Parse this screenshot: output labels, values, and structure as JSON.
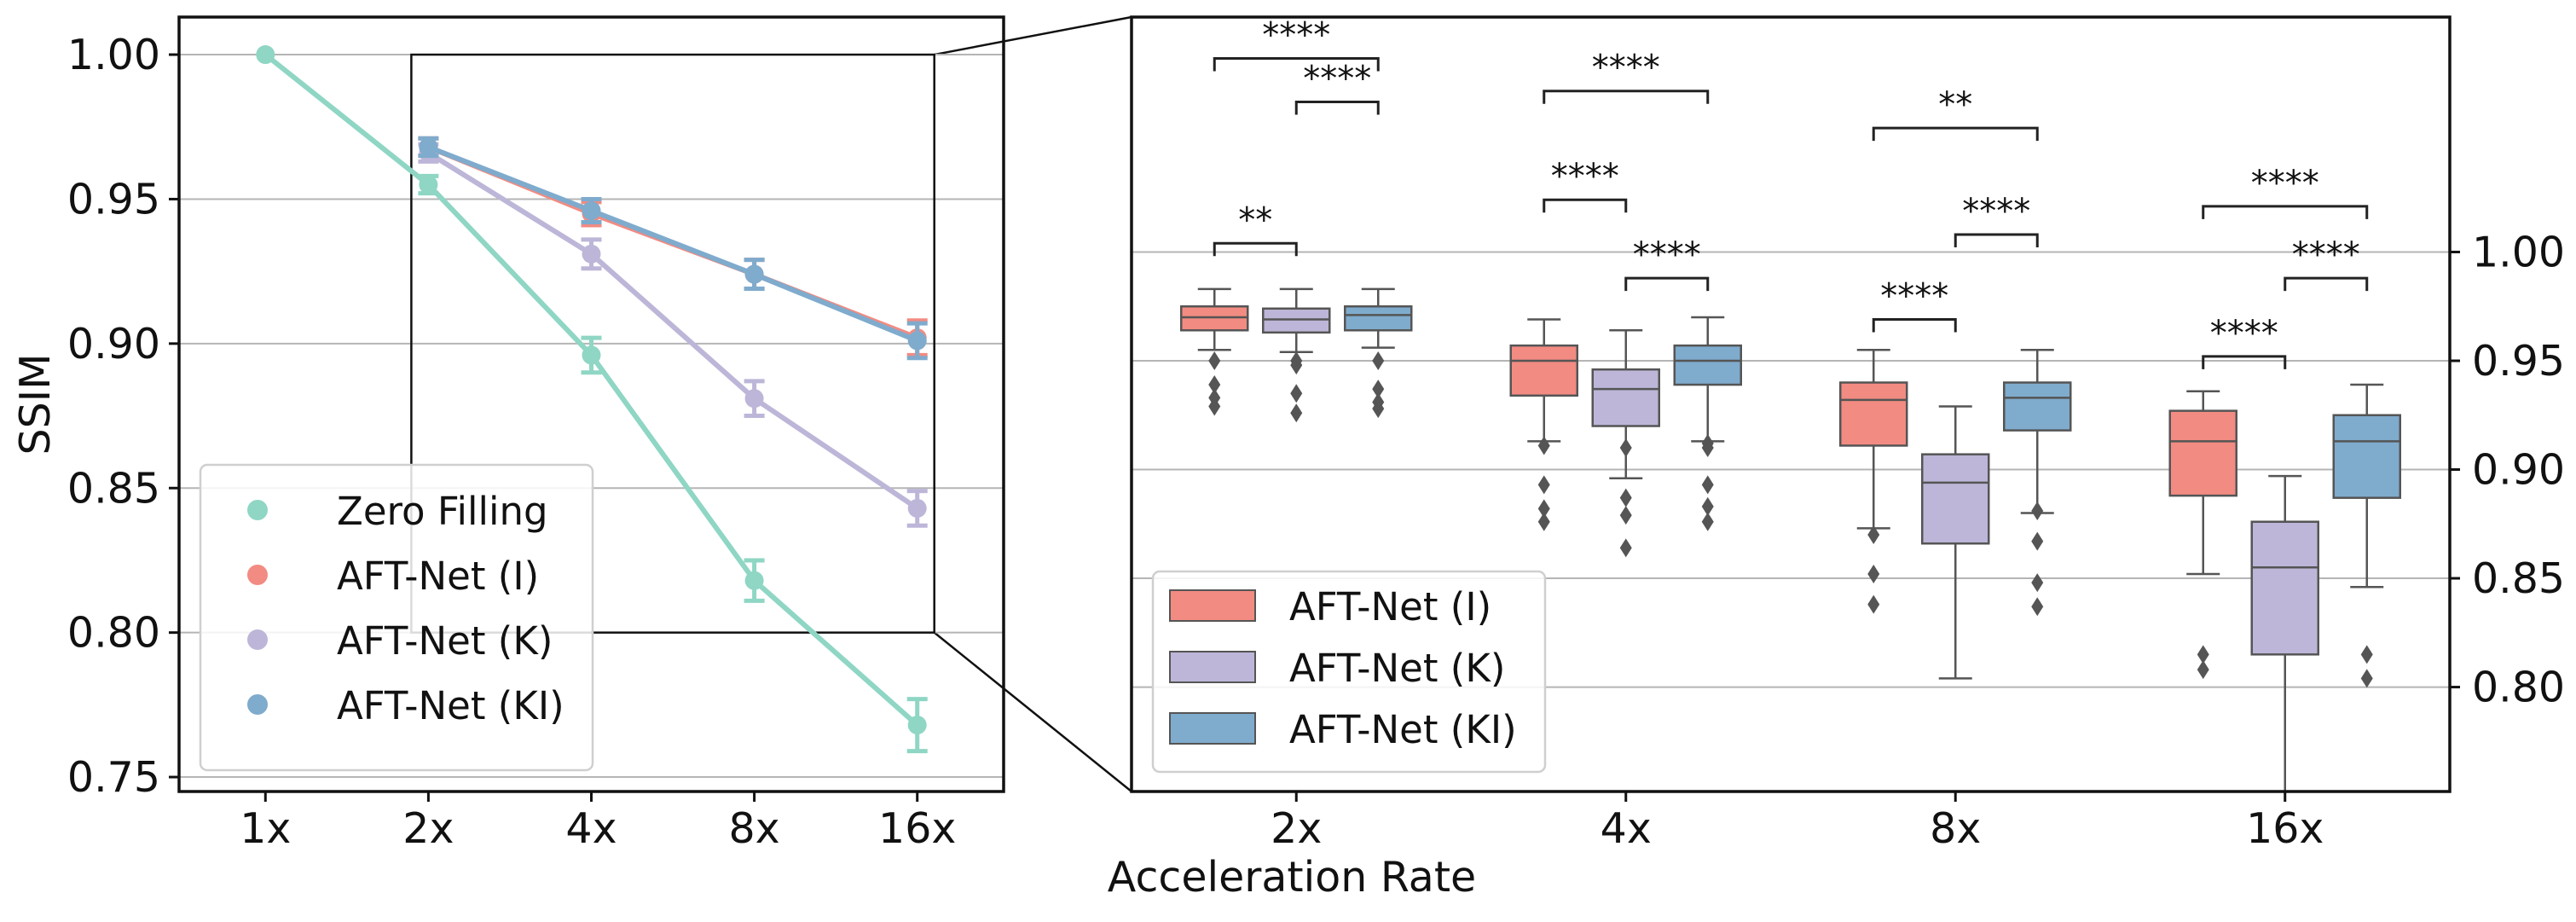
{
  "figure": {
    "xlabel": "Acceleration Rate"
  },
  "colors": {
    "zero": "#8fd6c4",
    "aft_i": "#f28b82",
    "aft_k": "#bdb6d8",
    "aft_ki": "#7fabcd"
  },
  "chart_data": [
    {
      "type": "line",
      "ylabel": "SSIM",
      "ylim": [
        0.745,
        1.013
      ],
      "yticks": [
        "1.00",
        "0.95",
        "0.90",
        "0.85",
        "0.80",
        "0.75"
      ],
      "categories": [
        "1x",
        "2x",
        "4x",
        "8x",
        "16x"
      ],
      "grid": "horizontal",
      "legend_position": "lower-left",
      "series": [
        {
          "name": "Zero Filling",
          "color": "#8fd6c4",
          "values": [
            1.0,
            0.955,
            0.896,
            0.818,
            0.768
          ],
          "err": [
            0,
            0.003,
            0.006,
            0.007,
            0.009
          ]
        },
        {
          "name": "AFT-Net (I)",
          "color": "#f28b82",
          "values": [
            null,
            0.968,
            0.945,
            0.924,
            0.902
          ],
          "err": [
            0,
            0.003,
            0.004,
            0.005,
            0.006
          ]
        },
        {
          "name": "AFT-Net (K)",
          "color": "#bdb6d8",
          "values": [
            null,
            0.966,
            0.931,
            0.881,
            0.843
          ],
          "err": [
            0,
            0.003,
            0.005,
            0.006,
            0.006
          ]
        },
        {
          "name": "AFT-Net (KI)",
          "color": "#7fabcd",
          "values": [
            null,
            0.968,
            0.946,
            0.924,
            0.901
          ],
          "err": [
            0,
            0.003,
            0.004,
            0.005,
            0.006
          ]
        }
      ]
    },
    {
      "type": "box",
      "ylim": [
        0.752,
        1.108
      ],
      "yticks": [
        "1.00",
        "0.95",
        "0.90",
        "0.85",
        "0.80"
      ],
      "ytick_side": "right",
      "categories": [
        "2x",
        "4x",
        "8x",
        "16x"
      ],
      "grid": "horizontal",
      "legend_position": "lower-left",
      "series": [
        {
          "name": "AFT-Net (I)",
          "color": "#f28b82",
          "boxes": [
            {
              "whislo": 0.955,
              "q1": 0.964,
              "med": 0.97,
              "q3": 0.975,
              "whishi": 0.983,
              "fliers": [
                0.95,
                0.939,
                0.933,
                0.929
              ]
            },
            {
              "whislo": 0.913,
              "q1": 0.934,
              "med": 0.95,
              "q3": 0.957,
              "whishi": 0.969,
              "fliers": [
                0.911,
                0.893,
                0.882,
                0.876
              ]
            },
            {
              "whislo": 0.873,
              "q1": 0.911,
              "med": 0.932,
              "q3": 0.94,
              "whishi": 0.955,
              "fliers": [
                0.87,
                0.852,
                0.838
              ]
            },
            {
              "whislo": 0.852,
              "q1": 0.888,
              "med": 0.913,
              "q3": 0.927,
              "whishi": 0.936,
              "fliers": [
                0.815,
                0.808
              ]
            }
          ]
        },
        {
          "name": "AFT-Net (K)",
          "color": "#bdb6d8",
          "boxes": [
            {
              "whislo": 0.954,
              "q1": 0.963,
              "med": 0.969,
              "q3": 0.974,
              "whishi": 0.983,
              "fliers": [
                0.95,
                0.948,
                0.935,
                0.926
              ]
            },
            {
              "whislo": 0.896,
              "q1": 0.92,
              "med": 0.937,
              "q3": 0.946,
              "whishi": 0.964,
              "fliers": [
                0.91,
                0.887,
                0.879,
                0.864
              ]
            },
            {
              "whislo": 0.804,
              "q1": 0.866,
              "med": 0.894,
              "q3": 0.907,
              "whishi": 0.929,
              "fliers": []
            },
            {
              "whislo": 0.752,
              "q1": 0.815,
              "med": 0.855,
              "q3": 0.876,
              "whishi": 0.897,
              "fliers": []
            }
          ]
        },
        {
          "name": "AFT-Net (KI)",
          "color": "#7fabcd",
          "boxes": [
            {
              "whislo": 0.956,
              "q1": 0.964,
              "med": 0.971,
              "q3": 0.975,
              "whishi": 0.983,
              "fliers": [
                0.95,
                0.937,
                0.931,
                0.928
              ]
            },
            {
              "whislo": 0.913,
              "q1": 0.939,
              "med": 0.95,
              "q3": 0.957,
              "whishi": 0.97,
              "fliers": [
                0.912,
                0.91,
                0.893,
                0.883,
                0.876
              ]
            },
            {
              "whislo": 0.88,
              "q1": 0.918,
              "med": 0.933,
              "q3": 0.94,
              "whishi": 0.955,
              "fliers": [
                0.881,
                0.867,
                0.848,
                0.837
              ]
            },
            {
              "whislo": 0.846,
              "q1": 0.887,
              "med": 0.913,
              "q3": 0.925,
              "whishi": 0.939,
              "fliers": [
                0.815,
                0.804
              ]
            }
          ]
        }
      ],
      "significance": [
        {
          "group": 0,
          "from": 0,
          "to": 2,
          "y": 1.089,
          "label": "****"
        },
        {
          "group": 0,
          "from": 1,
          "to": 2,
          "y": 1.069,
          "label": "****"
        },
        {
          "group": 0,
          "from": 0,
          "to": 1,
          "y": 1.004,
          "label": "**"
        },
        {
          "group": 1,
          "from": 0,
          "to": 2,
          "y": 1.074,
          "label": "****"
        },
        {
          "group": 1,
          "from": 0,
          "to": 1,
          "y": 1.024,
          "label": "****"
        },
        {
          "group": 1,
          "from": 1,
          "to": 2,
          "y": 0.988,
          "label": "****"
        },
        {
          "group": 2,
          "from": 0,
          "to": 2,
          "y": 1.057,
          "label": "**"
        },
        {
          "group": 2,
          "from": 1,
          "to": 2,
          "y": 1.008,
          "label": "****"
        },
        {
          "group": 2,
          "from": 0,
          "to": 1,
          "y": 0.969,
          "label": "****"
        },
        {
          "group": 3,
          "from": 0,
          "to": 2,
          "y": 1.021,
          "label": "****"
        },
        {
          "group": 3,
          "from": 1,
          "to": 2,
          "y": 0.988,
          "label": "****"
        },
        {
          "group": 3,
          "from": 0,
          "to": 1,
          "y": 0.952,
          "label": "****"
        }
      ]
    }
  ]
}
